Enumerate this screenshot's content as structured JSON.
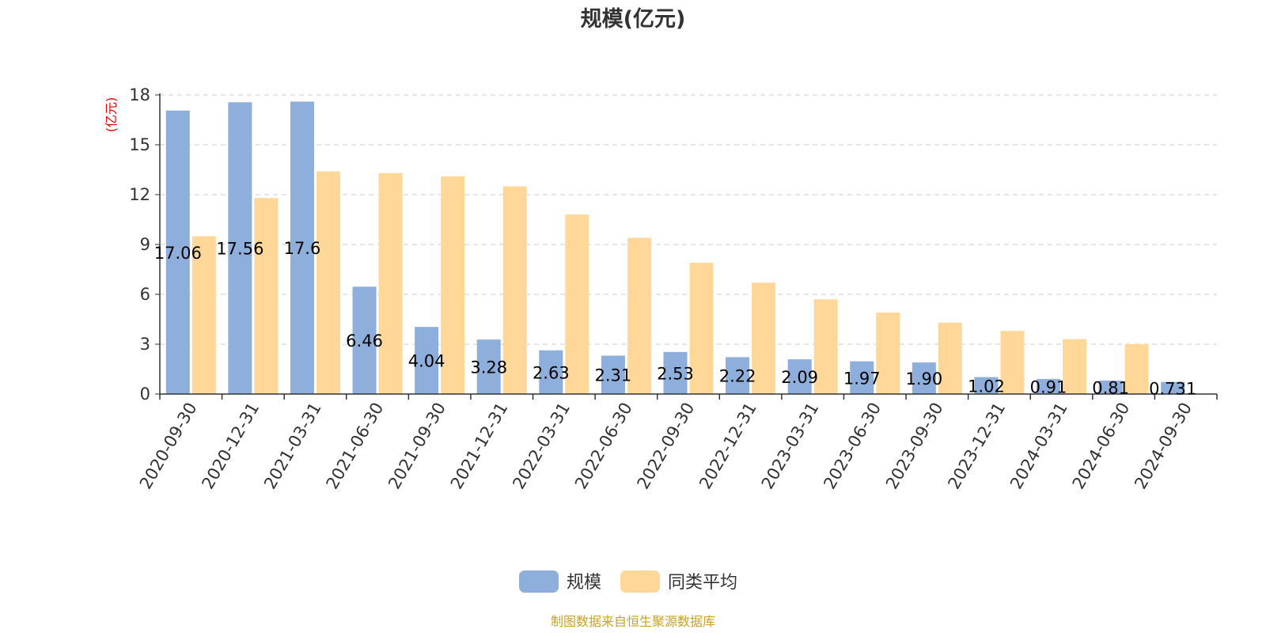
{
  "chart_data": {
    "type": "bar",
    "title": "规模(亿元)",
    "ylabel": "(亿元)",
    "xlabel": "",
    "ylim": [
      0,
      18
    ],
    "yticks": [
      0,
      3,
      6,
      9,
      12,
      15,
      18
    ],
    "grid": "horizontal-dashed",
    "legend_position": "bottom-center",
    "categories": [
      "2020-09-30",
      "2020-12-31",
      "2021-03-31",
      "2021-06-30",
      "2021-09-30",
      "2021-12-31",
      "2022-03-31",
      "2022-06-30",
      "2022-09-30",
      "2022-12-31",
      "2023-03-31",
      "2023-06-30",
      "2023-09-30",
      "2023-12-31",
      "2024-03-31",
      "2024-06-30",
      "2024-09-30"
    ],
    "series": [
      {
        "name": "规模",
        "color": "#8eaedb",
        "values": [
          17.06,
          17.56,
          17.6,
          6.46,
          4.04,
          3.28,
          2.63,
          2.31,
          2.53,
          2.22,
          2.09,
          1.97,
          1.9,
          1.02,
          0.91,
          0.81,
          0.731
        ],
        "labels": [
          "17.06",
          "17.56",
          "17.6",
          "6.46",
          "4.04",
          "3.28",
          "2.63",
          "2.31",
          "2.53",
          "2.22",
          "2.09",
          "1.97",
          "1.90",
          "1.02",
          "0.91",
          "0.81",
          "0.731"
        ]
      },
      {
        "name": "同类平均",
        "color": "#ffd899",
        "values": [
          9.5,
          11.8,
          13.4,
          13.3,
          13.1,
          12.5,
          10.8,
          9.4,
          7.9,
          6.7,
          5.7,
          4.9,
          4.3,
          3.8,
          3.3,
          3.0,
          null
        ]
      }
    ],
    "source": "制图数据来自恒生聚源数据库"
  }
}
